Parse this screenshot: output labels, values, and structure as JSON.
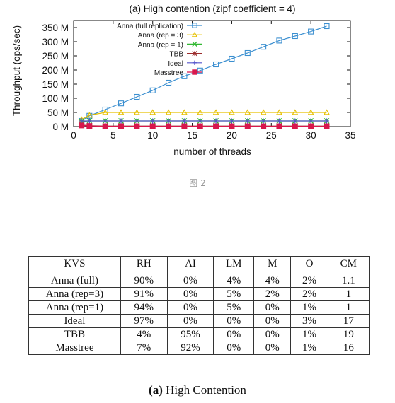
{
  "chart_data": {
    "type": "line",
    "title": "(a) High contention (zipf coefficient = 4)",
    "xlabel": "number of threads",
    "ylabel": "Throughput (ops/sec)",
    "xlim": [
      0,
      35
    ],
    "ylim": [
      0,
      375
    ],
    "x_ticks": [
      "0",
      "5",
      "10",
      "15",
      "20",
      "25",
      "30",
      "35"
    ],
    "y_ticks": [
      "0 M",
      "50 M",
      "100 M",
      "150 M",
      "200 M",
      "250 M",
      "300 M",
      "350 M"
    ],
    "legend_position": "top-left",
    "series": [
      {
        "name": "Anna (full replication)",
        "color": "#3b8fd0",
        "marker": "square",
        "x": [
          1,
          2,
          4,
          6,
          8,
          10,
          12,
          14,
          16,
          18,
          20,
          22,
          24,
          26,
          28,
          30,
          32
        ],
        "y": [
          20,
          38,
          60,
          82,
          105,
          128,
          155,
          178,
          198,
          220,
          240,
          260,
          282,
          304,
          320,
          336,
          355
        ]
      },
      {
        "name": "Anna (rep = 3)",
        "color": "#e6c000",
        "marker": "triangle",
        "x": [
          1,
          2,
          4,
          6,
          8,
          10,
          12,
          14,
          16,
          18,
          20,
          22,
          24,
          26,
          28,
          30,
          32
        ],
        "y": [
          25,
          40,
          50,
          50,
          50,
          50,
          50,
          50,
          50,
          50,
          50,
          50,
          50,
          50,
          50,
          50,
          50
        ]
      },
      {
        "name": "Anna (rep = 1)",
        "color": "#33b833",
        "marker": "x",
        "x": [
          1,
          2,
          4,
          6,
          8,
          10,
          12,
          14,
          16,
          18,
          20,
          22,
          24,
          26,
          28,
          30,
          32
        ],
        "y": [
          18,
          20,
          20,
          20,
          20,
          20,
          20,
          20,
          20,
          20,
          20,
          20,
          20,
          20,
          20,
          20,
          20
        ]
      },
      {
        "name": "TBB",
        "color": "#9b2c2c",
        "marker": "star",
        "x": [
          1,
          2,
          4,
          6,
          8,
          10,
          12,
          14,
          16,
          18,
          20,
          22,
          24,
          26,
          28,
          30,
          32
        ],
        "y": [
          6,
          3,
          2,
          2,
          2,
          2,
          2,
          2,
          2,
          2,
          2,
          2,
          2,
          2,
          2,
          2,
          2
        ]
      },
      {
        "name": "Ideal",
        "color": "#5555cc",
        "marker": "plus",
        "x": [
          1,
          2,
          4,
          6,
          8,
          10,
          12,
          14,
          16,
          18,
          20,
          22,
          24,
          26,
          28,
          30,
          32
        ],
        "y": [
          20,
          20,
          20,
          20,
          20,
          20,
          20,
          20,
          20,
          20,
          20,
          20,
          20,
          20,
          20,
          20,
          20
        ]
      },
      {
        "name": "Masstree",
        "color": "#d8174c",
        "marker": "filled-square",
        "x": [
          1,
          2,
          4,
          6,
          8,
          10,
          12,
          14,
          16,
          18,
          20,
          22,
          24,
          26,
          28,
          30,
          32
        ],
        "y": [
          4,
          2,
          1,
          1,
          1,
          1,
          1,
          1,
          1,
          1,
          1,
          1,
          1,
          1,
          1,
          1,
          1
        ]
      }
    ]
  },
  "figure_caption": "图 2",
  "table": {
    "headers": [
      "KVS",
      "RH",
      "AI",
      "LM",
      "M",
      "O",
      "CM"
    ],
    "rows": [
      [
        "Anna (full)",
        "90%",
        "0%",
        "4%",
        "4%",
        "2%",
        "1.1"
      ],
      [
        "Anna (rep=3)",
        "91%",
        "0%",
        "5%",
        "2%",
        "2%",
        "1"
      ],
      [
        "Anna (rep=1)",
        "94%",
        "0%",
        "5%",
        "0%",
        "1%",
        "1"
      ],
      [
        "Ideal",
        "97%",
        "0%",
        "0%",
        "0%",
        "3%",
        "17"
      ],
      [
        "TBB",
        "4%",
        "95%",
        "0%",
        "0%",
        "1%",
        "19"
      ],
      [
        "Masstree",
        "7%",
        "92%",
        "0%",
        "0%",
        "1%",
        "16"
      ]
    ],
    "caption_bold": "(a)",
    "caption_rest": " High Contention"
  }
}
